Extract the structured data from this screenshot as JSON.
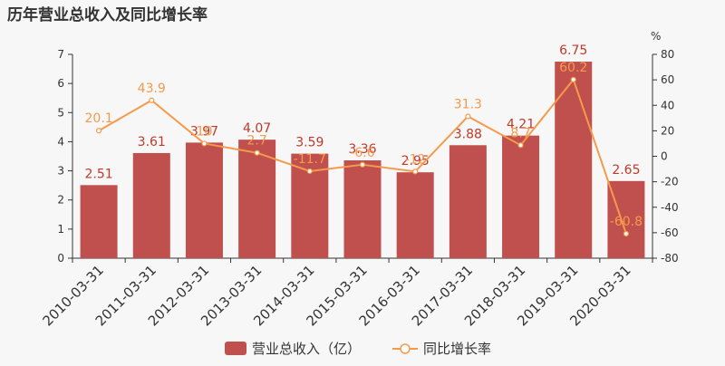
{
  "chart_data": {
    "type": "bar+line",
    "title": "历年营业总收入及同比增长率",
    "categories": [
      "2010-03-31",
      "2011-03-31",
      "2012-03-31",
      "2013-03-31",
      "2014-03-31",
      "2015-03-31",
      "2016-03-31",
      "2017-03-31",
      "2018-03-31",
      "2019-03-31",
      "2020-03-31"
    ],
    "series": [
      {
        "name": "营业总收入（亿）",
        "type": "bar",
        "axis": "left",
        "color": "#c0504d",
        "values": [
          2.51,
          3.61,
          3.97,
          4.07,
          3.59,
          3.36,
          2.95,
          3.88,
          4.21,
          6.75,
          2.65
        ],
        "labels": [
          "2.51",
          "3.61",
          "3.97",
          "4.07",
          "3.59",
          "3.36",
          "2.95",
          "3.88",
          "4.21",
          "6.75",
          "2.65"
        ]
      },
      {
        "name": "同比增长率",
        "type": "line",
        "axis": "right",
        "color": "#f59a4b",
        "values": [
          20.1,
          43.9,
          10,
          2.7,
          -11.7,
          -6.6,
          -12,
          31.3,
          8.7,
          60.2,
          -60.8
        ],
        "labels": [
          "20.1",
          "43.9",
          "10",
          "2.7",
          "-11.7",
          "-6.6",
          "-12",
          "31.3",
          "8.7",
          "60.2",
          "-60.8"
        ]
      }
    ],
    "y_left": {
      "min": 0,
      "max": 7,
      "ticks": [
        0,
        1,
        2,
        3,
        4,
        5,
        6,
        7
      ]
    },
    "y_right": {
      "min": -80,
      "max": 80,
      "unit": "%",
      "ticks": [
        -80,
        -60,
        -40,
        -20,
        0,
        20,
        40,
        60,
        80
      ]
    },
    "legend_position": "bottom-center"
  }
}
